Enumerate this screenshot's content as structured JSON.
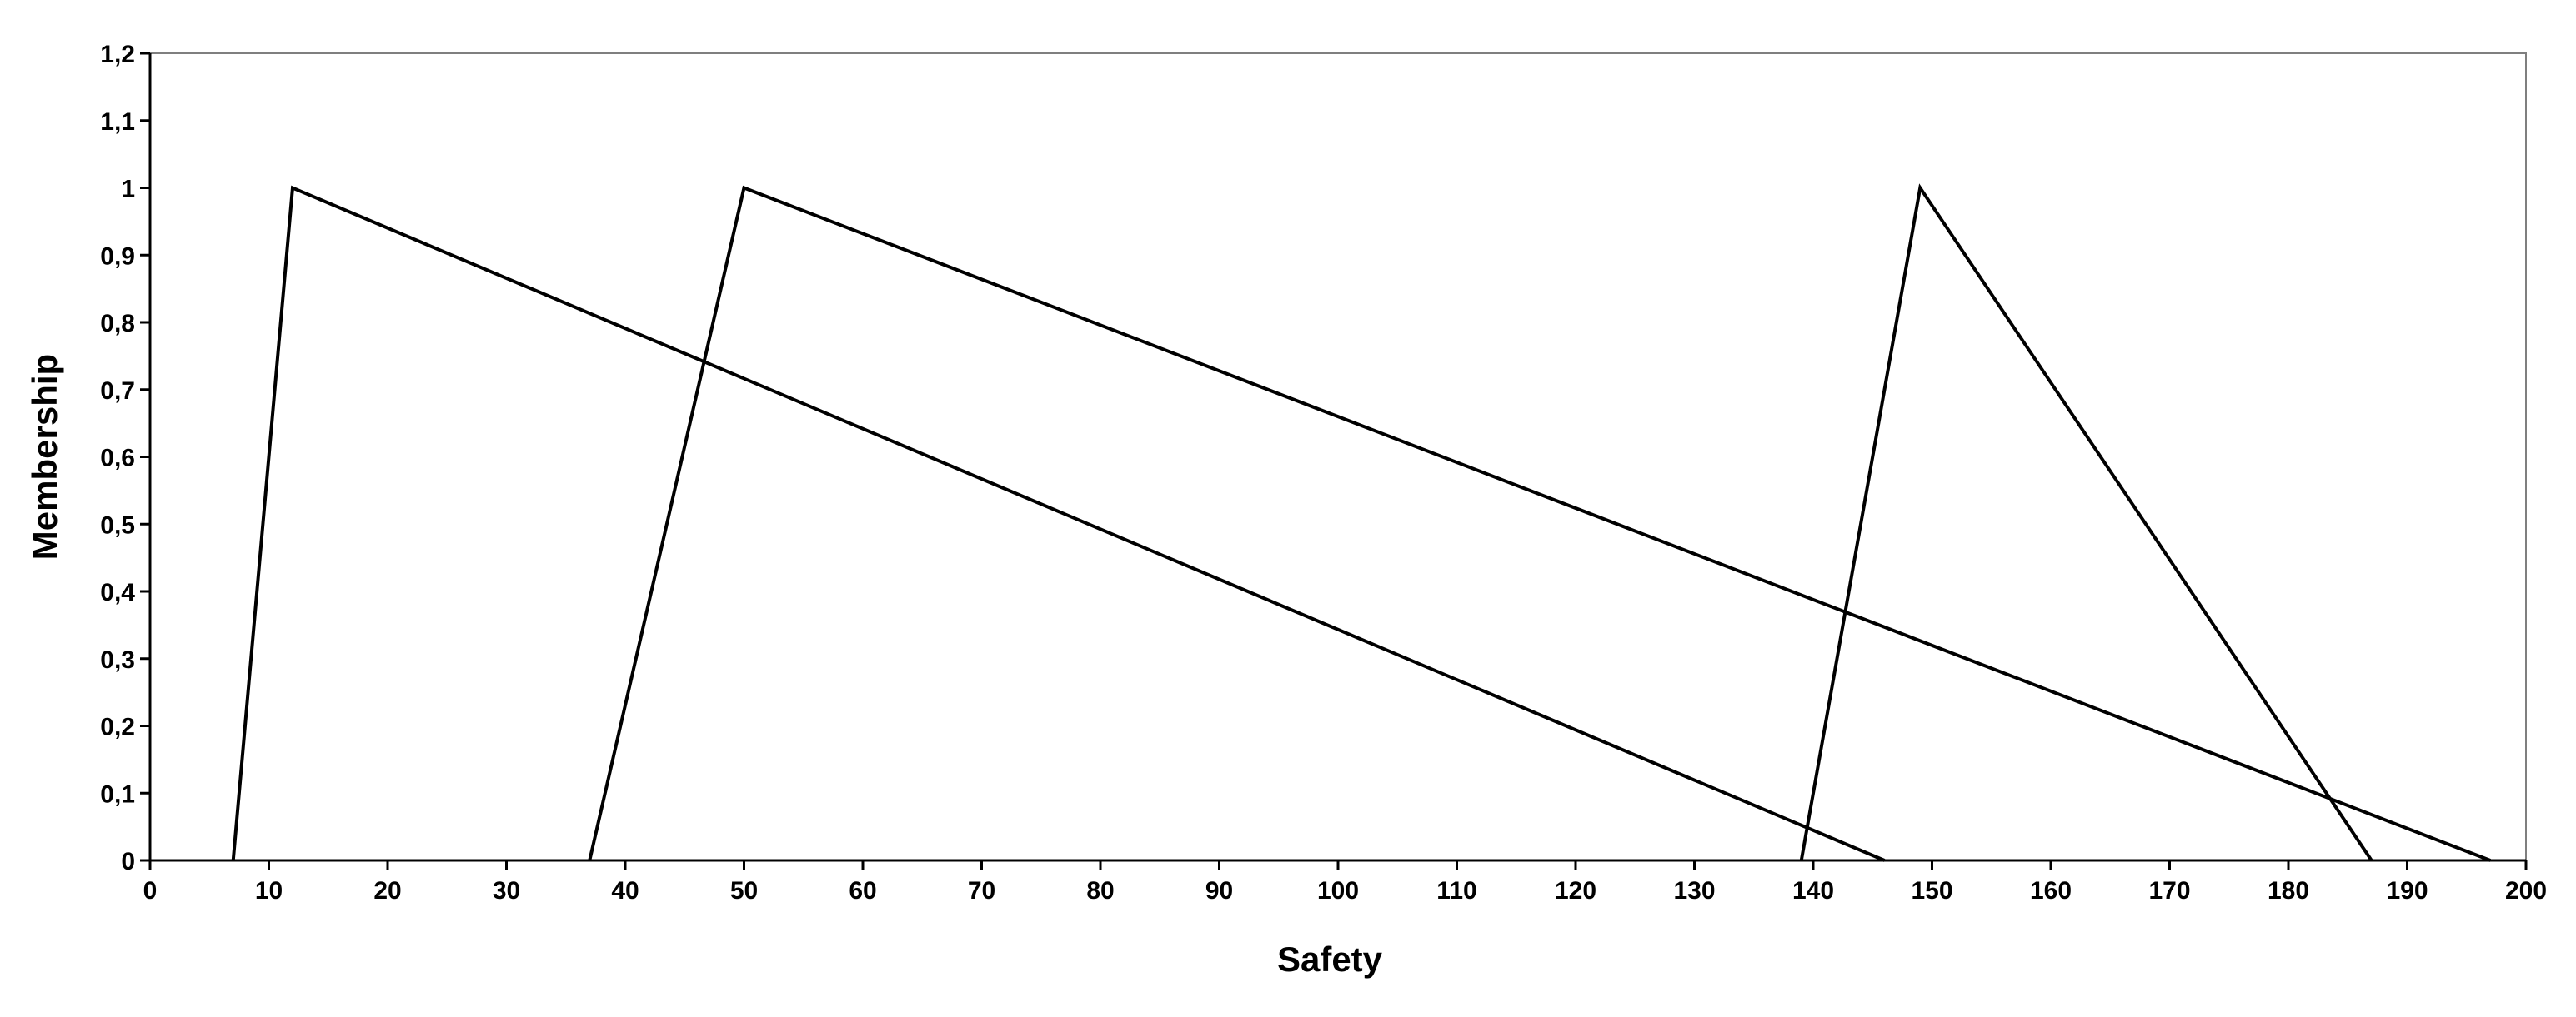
{
  "chart_data": {
    "type": "line",
    "xlabel": "Safety",
    "ylabel": "Membership",
    "xlim": [
      0,
      200
    ],
    "ylim": [
      0,
      1.2
    ],
    "xticks": [
      "0",
      "10",
      "20",
      "30",
      "40",
      "50",
      "60",
      "70",
      "80",
      "90",
      "100",
      "110",
      "120",
      "130",
      "140",
      "150",
      "160",
      "170",
      "180",
      "190",
      "200"
    ],
    "yticks": [
      "0",
      "0,1",
      "0,2",
      "0,3",
      "0,4",
      "0,5",
      "0,6",
      "0,7",
      "0,8",
      "0,9",
      "1",
      "1,1",
      "1,2"
    ],
    "grid": false,
    "series": [
      {
        "x": [
          7,
          12,
          146
        ],
        "y": [
          0,
          1,
          0
        ]
      },
      {
        "x": [
          37,
          50,
          197
        ],
        "y": [
          0,
          1,
          0
        ]
      },
      {
        "x": [
          139,
          149,
          187
        ],
        "y": [
          0,
          1,
          0
        ]
      }
    ],
    "line_color": "#000000"
  }
}
